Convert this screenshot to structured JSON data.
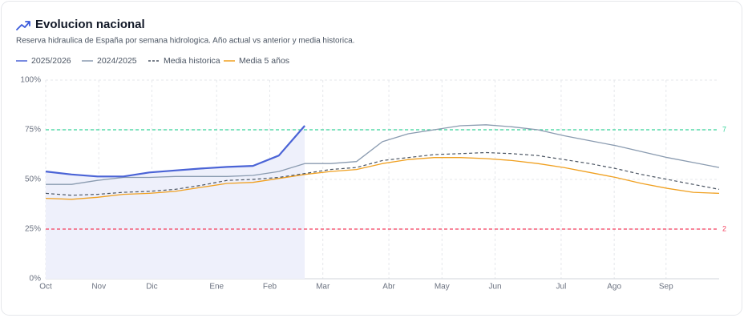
{
  "chart_data": {
    "type": "line",
    "title": "Evolucion nacional",
    "subtitle": "Reserva hidraulica de España por semana hidrologica. Año actual vs anterior y media historica.",
    "x": [
      0,
      2,
      4,
      6,
      8,
      10,
      12,
      14,
      16,
      18,
      20,
      22,
      24,
      26,
      28,
      30,
      32,
      34,
      36,
      38,
      40,
      42,
      44,
      46,
      48,
      50,
      52
    ],
    "xlim": [
      0,
      52
    ],
    "xticks": [
      {
        "value": 0,
        "label": "Oct"
      },
      {
        "value": 4.1,
        "label": "Nov"
      },
      {
        "value": 8.2,
        "label": "Dic"
      },
      {
        "value": 13.2,
        "label": "Ene"
      },
      {
        "value": 17.3,
        "label": "Feb"
      },
      {
        "value": 21.4,
        "label": "Mar"
      },
      {
        "value": 26.5,
        "label": "Abr"
      },
      {
        "value": 30.6,
        "label": "May"
      },
      {
        "value": 34.7,
        "label": "Jun"
      },
      {
        "value": 39.8,
        "label": "Jul"
      },
      {
        "value": 43.9,
        "label": "Ago"
      },
      {
        "value": 47.9,
        "label": "Sep"
      }
    ],
    "ylim": [
      0,
      100
    ],
    "yticks": [
      {
        "value": 0,
        "label": "0%"
      },
      {
        "value": 25,
        "label": "25%"
      },
      {
        "value": 50,
        "label": "50%"
      },
      {
        "value": 75,
        "label": "75%"
      },
      {
        "value": 100,
        "label": "100%"
      }
    ],
    "grid": true,
    "legend": "top-left",
    "thresholds": [
      {
        "value": 75,
        "label": "7",
        "color": "#34d399"
      },
      {
        "value": 25,
        "label": "2",
        "color": "#f43f5e"
      }
    ],
    "series": [
      {
        "name": "2025/2026",
        "color": "#4a63d6",
        "width": 2.2,
        "shade": "#eef0fb",
        "values": [
          54,
          52.5,
          51.5,
          51.5,
          53.5,
          54.5,
          55.5,
          56.3,
          56.8,
          62,
          77,
          null,
          null,
          null,
          null,
          null,
          null,
          null,
          null,
          null,
          null,
          null,
          null,
          null,
          null,
          null,
          null
        ]
      },
      {
        "name": "2024/2025",
        "color": "#8a9bb0",
        "width": 1.3,
        "values": [
          47.5,
          47.5,
          49.5,
          51,
          51,
          51.5,
          51.5,
          51.5,
          52,
          54,
          58,
          58,
          59,
          69,
          73,
          75,
          77,
          77.5,
          76.5,
          75,
          72,
          69.5,
          67,
          64,
          61,
          58.5,
          56
        ]
      },
      {
        "name": "Media historica",
        "color": "#4b5563",
        "width": 1.2,
        "dashed": true,
        "values": [
          43,
          42,
          42.5,
          43.5,
          44,
          45,
          47,
          49.5,
          50,
          51,
          53,
          55,
          56,
          59.5,
          61,
          62.5,
          63,
          63.5,
          63,
          62,
          60,
          58,
          55.5,
          52.5,
          50,
          47.5,
          45
        ]
      },
      {
        "name": "Media 5 años",
        "color": "#f0a020",
        "width": 1.3,
        "values": [
          40.5,
          40,
          41,
          42.5,
          43,
          44,
          46,
          48,
          48.5,
          50.5,
          52.5,
          54,
          55,
          58,
          60,
          61,
          61,
          60.5,
          59.5,
          58,
          56,
          53.5,
          51,
          48,
          45.5,
          43.5,
          43
        ]
      }
    ]
  }
}
